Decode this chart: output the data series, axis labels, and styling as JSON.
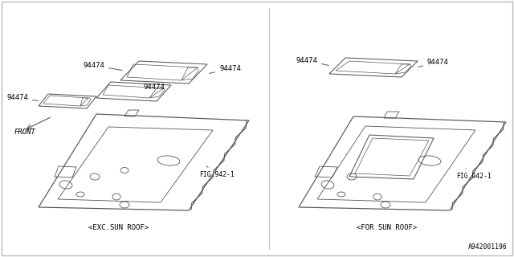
{
  "background_color": "#ffffff",
  "line_color": "#555555",
  "text_color": "#000000",
  "diagram_id": "A942001196",
  "label_left": "<EXC.SUN ROOF>",
  "label_right": "<FOR SUN ROOF>",
  "part_number": "94474",
  "fig_ref": "FIG.942-1",
  "front_label": "FRONT",
  "border_color": "#bbbbbb"
}
